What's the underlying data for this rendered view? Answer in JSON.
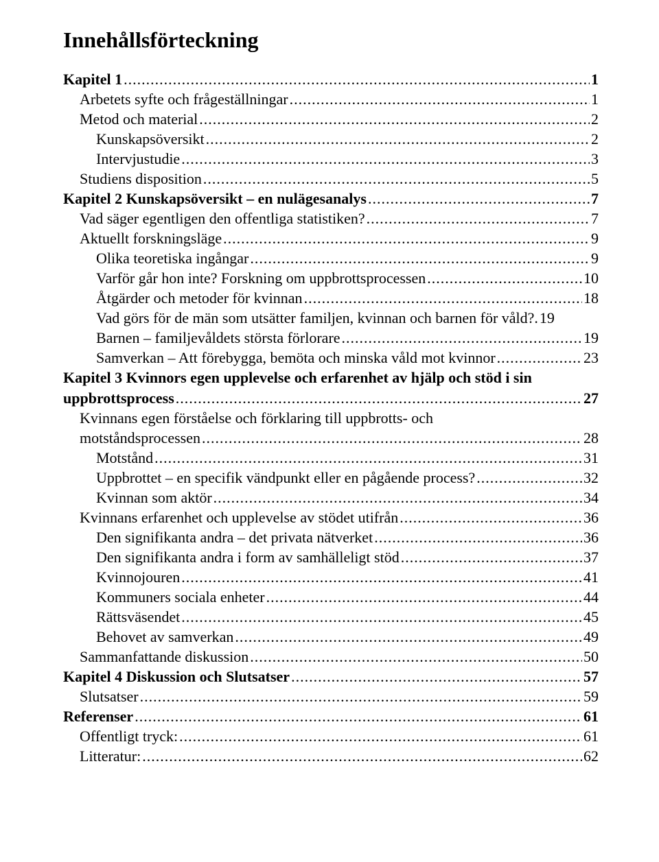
{
  "title": "Innehållsförteckning",
  "toc": [
    {
      "text": "Kapitel 1",
      "page": "1",
      "bold": true,
      "indent": 0
    },
    {
      "text": "Arbetets syfte och frågeställningar",
      "page": "1",
      "bold": false,
      "indent": 1
    },
    {
      "text": "Metod och material",
      "page": "2",
      "bold": false,
      "indent": 1
    },
    {
      "text": "Kunskapsöversikt",
      "page": "2",
      "bold": false,
      "indent": 2
    },
    {
      "text": "Intervjustudie",
      "page": "3",
      "bold": false,
      "indent": 2
    },
    {
      "text": "Studiens disposition",
      "page": "5",
      "bold": false,
      "indent": 1
    },
    {
      "text": "Kapitel 2  Kunskapsöversikt – en nulägesanalys",
      "page": "7",
      "bold": true,
      "indent": 0
    },
    {
      "text": "Vad säger egentligen den offentliga statistiken?",
      "page": "7",
      "bold": false,
      "indent": 1
    },
    {
      "text": "Aktuellt forskningsläge",
      "page": "9",
      "bold": false,
      "indent": 1
    },
    {
      "text": "Olika teoretiska ingångar",
      "page": "9",
      "bold": false,
      "indent": 2
    },
    {
      "text": "Varför går hon inte? Forskning om uppbrottsprocessen",
      "page": "10",
      "bold": false,
      "indent": 2
    },
    {
      "text": "Åtgärder och metoder för kvinnan",
      "page": "18",
      "bold": false,
      "indent": 2
    },
    {
      "text": "Vad görs för de män som utsätter familjen, kvinnan och barnen för våld?.",
      "page": "19",
      "bold": false,
      "indent": 2,
      "nodots": true
    },
    {
      "text": "Barnen – familjevåldets största förlorare",
      "page": "19",
      "bold": false,
      "indent": 2
    },
    {
      "text": "Samverkan – Att förebygga, bemöta och minska våld mot kvinnor",
      "page": "23",
      "bold": false,
      "indent": 2
    },
    {
      "text_lines": [
        "Kapitel 3  Kvinnors egen upplevelse och erfarenhet av hjälp och stöd i sin",
        "uppbrottsprocess"
      ],
      "page": "27",
      "bold": true,
      "indent": 0
    },
    {
      "text_lines": [
        "Kvinnans egen förståelse och förklaring till uppbrotts- och",
        "motståndsprocessen"
      ],
      "page": "28",
      "bold": false,
      "indent": 1
    },
    {
      "text": "Motstånd",
      "page": "31",
      "bold": false,
      "indent": 2
    },
    {
      "text": "Uppbrottet – en specifik vändpunkt eller en pågående process?",
      "page": "32",
      "bold": false,
      "indent": 2
    },
    {
      "text": "Kvinnan som aktör",
      "page": "34",
      "bold": false,
      "indent": 2
    },
    {
      "text": "Kvinnans erfarenhet och upplevelse av stödet utifrån",
      "page": "36",
      "bold": false,
      "indent": 1
    },
    {
      "text": "Den signifikanta andra – det privata nätverket",
      "page": "36",
      "bold": false,
      "indent": 2
    },
    {
      "text": "Den signifikanta andra i form av samhälleligt stöd",
      "page": "37",
      "bold": false,
      "indent": 2
    },
    {
      "text": "Kvinnojouren",
      "page": "41",
      "bold": false,
      "indent": 2
    },
    {
      "text": "Kommuners sociala enheter",
      "page": "44",
      "bold": false,
      "indent": 2
    },
    {
      "text": "Rättsväsendet",
      "page": "45",
      "bold": false,
      "indent": 2
    },
    {
      "text": "Behovet av samverkan",
      "page": "49",
      "bold": false,
      "indent": 2
    },
    {
      "text": "Sammanfattande diskussion",
      "page": "50",
      "bold": false,
      "indent": 1
    },
    {
      "text": "Kapitel 4 Diskussion och Slutsatser",
      "page": "57",
      "bold": true,
      "indent": 0
    },
    {
      "text": "Slutsatser",
      "page": "59",
      "bold": false,
      "indent": 1
    },
    {
      "text": "Referenser",
      "page": "61",
      "bold": true,
      "indent": 0
    },
    {
      "text": "Offentligt tryck:",
      "page": "61",
      "bold": false,
      "indent": 1
    },
    {
      "text": "Litteratur:",
      "page": "62",
      "bold": false,
      "indent": 1
    }
  ]
}
